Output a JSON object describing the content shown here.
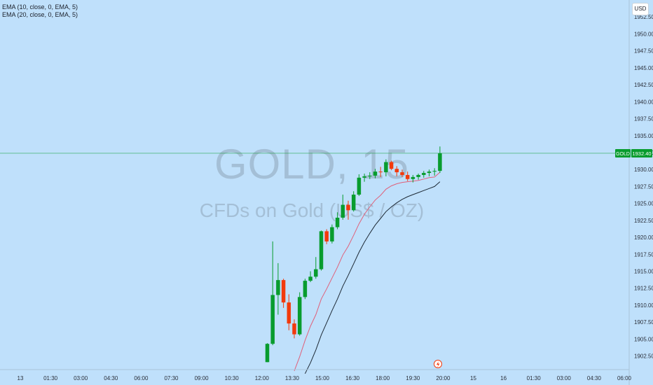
{
  "indicators": [
    {
      "label": "EMA (10, close, 0, EMA, 5)"
    },
    {
      "label": "EMA (20, close, 0, EMA, 5)"
    }
  ],
  "currency_label": "USD",
  "watermark": {
    "symbol": "GOLD, 15",
    "description": "CFDs on Gold (US$ / OZ)"
  },
  "colors": {
    "background": "#bfe0fb",
    "up": "#089c2e",
    "down": "#f23a0c",
    "ema10": "#e0607a",
    "ema20": "#1e2a36",
    "price_line": "#089c2e"
  },
  "chart_data": {
    "type": "candlestick",
    "title": "",
    "symbol": "GOLD",
    "timeframe": "15",
    "ylim": [
      1900.5,
      1955
    ],
    "y_ticks": [
      "1902.50",
      "1905.00",
      "1907.50",
      "1910.00",
      "1912.50",
      "1915.00",
      "1917.50",
      "1920.00",
      "1922.50",
      "1925.00",
      "1927.50",
      "1930.00",
      "1932.50",
      "1935.00",
      "1937.50",
      "1940.00",
      "1942.50",
      "1945.00",
      "1947.50",
      "1950.00",
      "1952.50"
    ],
    "x_tick_labels": [
      "13",
      "01:30",
      "03:00",
      "04:30",
      "06:00",
      "07:30",
      "09:00",
      "10:30",
      "12:00",
      "13:30",
      "15:00",
      "16:30",
      "18:00",
      "19:30",
      "20:00",
      "15",
      "16",
      "01:30",
      "03:00",
      "04:30",
      "06:00"
    ],
    "last_price": {
      "symbol": "GOLD",
      "value": "1932.40"
    },
    "candles": [
      {
        "open": 1901.6,
        "high": 1904.4,
        "low": 1901.6,
        "close": 1904.3
      },
      {
        "open": 1904.3,
        "high": 1919.4,
        "low": 1904.1,
        "close": 1911.5
      },
      {
        "open": 1911.5,
        "high": 1916.2,
        "low": 1908.6,
        "close": 1913.7
      },
      {
        "open": 1913.7,
        "high": 1913.9,
        "low": 1909.6,
        "close": 1910.4
      },
      {
        "open": 1910.4,
        "high": 1911.6,
        "low": 1906.3,
        "close": 1907.3
      },
      {
        "open": 1907.3,
        "high": 1907.9,
        "low": 1905.1,
        "close": 1905.7
      },
      {
        "open": 1905.7,
        "high": 1911.9,
        "low": 1905.5,
        "close": 1911.2
      },
      {
        "open": 1911.2,
        "high": 1913.9,
        "low": 1910.9,
        "close": 1913.6
      },
      {
        "open": 1913.6,
        "high": 1915.0,
        "low": 1913.4,
        "close": 1914.2
      },
      {
        "open": 1914.2,
        "high": 1917.1,
        "low": 1913.9,
        "close": 1915.3
      },
      {
        "open": 1915.3,
        "high": 1921.0,
        "low": 1915.1,
        "close": 1920.9
      },
      {
        "open": 1920.9,
        "high": 1921.2,
        "low": 1919.0,
        "close": 1919.4
      },
      {
        "open": 1919.4,
        "high": 1921.9,
        "low": 1919.1,
        "close": 1921.5
      },
      {
        "open": 1921.5,
        "high": 1923.7,
        "low": 1921.2,
        "close": 1922.9
      },
      {
        "open": 1922.9,
        "high": 1926.3,
        "low": 1922.6,
        "close": 1924.8
      },
      {
        "open": 1924.8,
        "high": 1925.4,
        "low": 1922.6,
        "close": 1924.0
      },
      {
        "open": 1924.0,
        "high": 1926.8,
        "low": 1923.8,
        "close": 1926.3
      },
      {
        "open": 1926.3,
        "high": 1929.3,
        "low": 1926.1,
        "close": 1928.8
      },
      {
        "open": 1928.8,
        "high": 1929.4,
        "low": 1928.2,
        "close": 1929.0
      },
      {
        "open": 1929.0,
        "high": 1929.6,
        "low": 1928.6,
        "close": 1929.1
      },
      {
        "open": 1929.1,
        "high": 1930.1,
        "low": 1928.7,
        "close": 1929.7
      },
      {
        "open": 1929.7,
        "high": 1930.4,
        "low": 1928.9,
        "close": 1929.6
      },
      {
        "open": 1929.6,
        "high": 1931.5,
        "low": 1929.0,
        "close": 1931.1
      },
      {
        "open": 1931.1,
        "high": 1931.3,
        "low": 1929.9,
        "close": 1930.1
      },
      {
        "open": 1930.1,
        "high": 1930.5,
        "low": 1929.0,
        "close": 1929.6
      },
      {
        "open": 1929.6,
        "high": 1930.0,
        "low": 1928.9,
        "close": 1929.2
      },
      {
        "open": 1929.2,
        "high": 1929.7,
        "low": 1928.3,
        "close": 1928.6
      },
      {
        "open": 1928.6,
        "high": 1929.2,
        "low": 1928.1,
        "close": 1928.9
      },
      {
        "open": 1928.9,
        "high": 1929.4,
        "low": 1928.5,
        "close": 1929.2
      },
      {
        "open": 1929.2,
        "high": 1929.8,
        "low": 1928.8,
        "close": 1929.5
      },
      {
        "open": 1929.5,
        "high": 1930.0,
        "low": 1929.0,
        "close": 1929.7
      },
      {
        "open": 1929.7,
        "high": 1930.2,
        "low": 1929.1,
        "close": 1929.8
      },
      {
        "open": 1929.8,
        "high": 1933.4,
        "low": 1929.5,
        "close": 1932.4
      }
    ],
    "series": [
      {
        "name": "EMA (10, close, 0, EMA, 5)",
        "values": [
          null,
          null,
          null,
          null,
          null,
          1900.3,
          1902.4,
          1904.8,
          1906.9,
          1908.6,
          1910.9,
          1912.4,
          1914.0,
          1915.6,
          1917.4,
          1918.7,
          1920.3,
          1922.0,
          1923.4,
          1924.5,
          1925.5,
          1926.2,
          1927.1,
          1927.6,
          1927.9,
          1928.1,
          1928.2,
          1928.3,
          1928.4,
          1928.6,
          1928.8,
          1928.9,
          1929.6
        ]
      },
      {
        "name": "EMA (20, close, 0, EMA, 5)",
        "values": [
          null,
          null,
          null,
          null,
          null,
          null,
          null,
          1899.9,
          1901.5,
          1903.4,
          1905.6,
          1907.4,
          1909.2,
          1910.9,
          1912.8,
          1914.4,
          1916.1,
          1917.8,
          1919.3,
          1920.6,
          1921.8,
          1922.8,
          1923.8,
          1924.5,
          1925.1,
          1925.6,
          1926.0,
          1926.3,
          1926.6,
          1926.9,
          1927.2,
          1927.5,
          1928.2
        ]
      }
    ]
  }
}
